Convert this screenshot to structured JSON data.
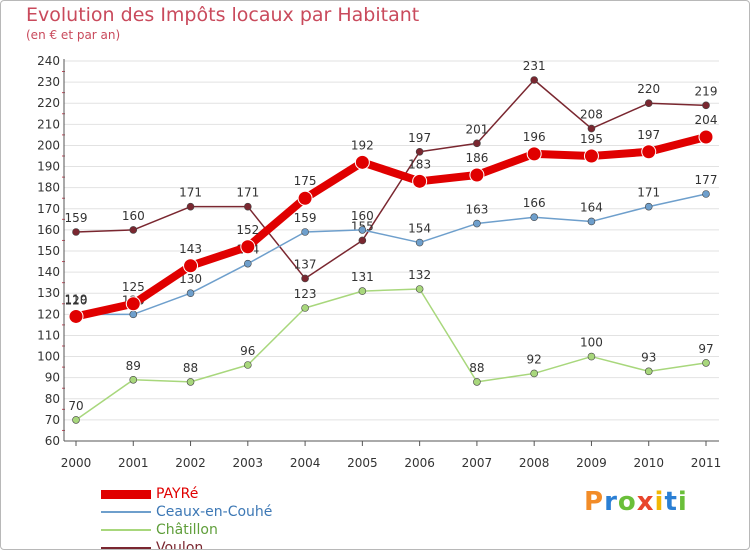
{
  "title": "Evolution des Impôts locaux par Habitant",
  "subtitle": "(en € et par an)",
  "brand": {
    "letters": [
      "P",
      "r",
      "o",
      "x",
      "i",
      "t",
      "i"
    ],
    "colors": [
      "#f28c28",
      "#2a7fd4",
      "#6abf3a",
      "#e8452c",
      "#f2b705",
      "#2a7fd4",
      "#6abf3a"
    ]
  },
  "chart_data": {
    "type": "line",
    "x": [
      "2000",
      "2001",
      "2002",
      "2003",
      "2004",
      "2005",
      "2006",
      "2007",
      "2008",
      "2009",
      "2010",
      "2011"
    ],
    "ylim": [
      60,
      240
    ],
    "yticks": [
      60,
      70,
      80,
      90,
      100,
      110,
      120,
      130,
      140,
      150,
      160,
      170,
      180,
      190,
      200,
      210,
      220,
      230,
      240
    ],
    "grid": "horizontal",
    "legend_position": "bottom-left",
    "series": [
      {
        "name": "PAYRé",
        "color": "#e00000",
        "values": [
          119,
          125,
          143,
          152,
          175,
          192,
          183,
          186,
          196,
          195,
          197,
          204
        ]
      },
      {
        "name": "Ceaux-en-Couhé",
        "color": "#6e9fcc",
        "values": [
          120,
          120,
          130,
          144,
          159,
          160,
          154,
          163,
          166,
          164,
          171,
          177
        ]
      },
      {
        "name": "Châtillon",
        "color": "#a8d77c",
        "values": [
          70,
          89,
          88,
          96,
          123,
          131,
          132,
          88,
          92,
          100,
          93,
          97
        ]
      },
      {
        "name": "Voulon",
        "color": "#7a2730",
        "values": [
          159,
          160,
          171,
          171,
          137,
          155,
          197,
          201,
          231,
          208,
          220,
          219
        ]
      }
    ]
  }
}
